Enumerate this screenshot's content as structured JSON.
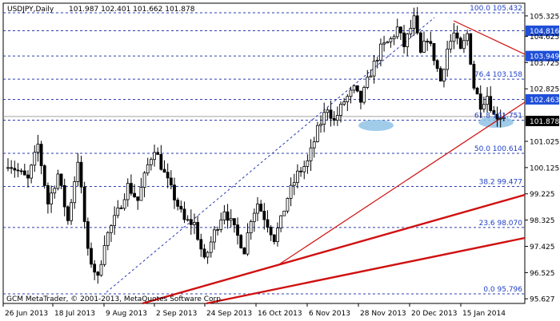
{
  "chart_data": {
    "type": "candlestick",
    "title": "USDJPY,Daily",
    "ohlc_header": "101.987 102.401 101.662 101.878",
    "symbol": "USDJPY",
    "timeframe": "Daily",
    "last_open": 101.987,
    "last_high": 102.401,
    "last_low": 101.662,
    "last_close": 101.878,
    "current_price_label": "101.878",
    "ylim": [
      95.627,
      105.432
    ],
    "y_ticks": [
      {
        "label": "105.325",
        "value": 105.325
      },
      {
        "label": "104.625",
        "value": 104.625
      },
      {
        "label": "103.725",
        "value": 103.725
      },
      {
        "label": "102.825",
        "value": 102.825
      },
      {
        "label": "101.025",
        "value": 101.025
      },
      {
        "label": "100.125",
        "value": 100.125
      },
      {
        "label": "99.225",
        "value": 99.225
      },
      {
        "label": "98.325",
        "value": 98.325
      },
      {
        "label": "97.425",
        "value": 97.425
      },
      {
        "label": "96.525",
        "value": 96.525
      },
      {
        "label": "95.627",
        "value": 95.627
      }
    ],
    "highlighted_levels": [
      {
        "label": "104.816",
        "value": 104.816
      },
      {
        "label": "103.949",
        "value": 103.949
      },
      {
        "label": "102.463",
        "value": 102.463
      }
    ],
    "x_ticks": [
      "26 Jun 2013",
      "18 Jul 2013",
      "9 Aug 2013",
      "2 Sep 2013",
      "24 Sep 2013",
      "16 Oct 2013",
      "6 Nov 2013",
      "28 Nov 2013",
      "20 Dec 2013",
      "15 Jan 2014"
    ],
    "fibonacci": [
      {
        "label": "100.0 105.432",
        "value": 105.432
      },
      {
        "label": "76.4 103.158",
        "value": 103.158
      },
      {
        "label": "61.8 101.751",
        "value": 101.751
      },
      {
        "label": "50.0 100.614",
        "value": 100.614
      },
      {
        "label": "38.2 99.477",
        "value": 99.477
      },
      {
        "label": "23.6 98.070",
        "value": 98.07
      },
      {
        "label": "0.0 95.796",
        "value": 95.796
      }
    ],
    "watermark": "GCM MetaTrader, © 2001-2013, MetaQuotes Software Corp.",
    "colors": {
      "background": "#ffffff",
      "candles": "#000000",
      "fib_lines": "#2a3cb0",
      "trend_lines": "#d01010",
      "highlight_box": "#1f4fd8",
      "current_price_box": "#000000",
      "ellipse": "#8fc3e6"
    },
    "close_path": [
      {
        "i": 0,
        "c": 100.3
      },
      {
        "i": 6,
        "c": 99.7
      },
      {
        "i": 9,
        "c": 100.9
      },
      {
        "i": 12,
        "c": 98.9
      },
      {
        "i": 15,
        "c": 99.9
      },
      {
        "i": 18,
        "c": 98.3
      },
      {
        "i": 21,
        "c": 100.4
      },
      {
        "i": 24,
        "c": 97.2
      },
      {
        "i": 27,
        "c": 96.3
      },
      {
        "i": 29,
        "c": 97.6
      },
      {
        "i": 33,
        "c": 98.6
      },
      {
        "i": 36,
        "c": 99.5
      },
      {
        "i": 39,
        "c": 99.0
      },
      {
        "i": 42,
        "c": 100.2
      },
      {
        "i": 44,
        "c": 100.8
      },
      {
        "i": 47,
        "c": 99.9
      },
      {
        "i": 50,
        "c": 99.1
      },
      {
        "i": 53,
        "c": 98.3
      },
      {
        "i": 56,
        "c": 98.2
      },
      {
        "i": 59,
        "c": 96.9
      },
      {
        "i": 62,
        "c": 97.9
      },
      {
        "i": 65,
        "c": 98.7
      },
      {
        "i": 68,
        "c": 98.0
      },
      {
        "i": 71,
        "c": 97.3
      },
      {
        "i": 73,
        "c": 98.4
      },
      {
        "i": 75,
        "c": 98.9
      },
      {
        "i": 78,
        "c": 98.2
      },
      {
        "i": 80,
        "c": 97.7
      },
      {
        "i": 82,
        "c": 98.3
      },
      {
        "i": 84,
        "c": 99.1
      },
      {
        "i": 87,
        "c": 99.9
      },
      {
        "i": 90,
        "c": 100.3
      },
      {
        "i": 93,
        "c": 101.4
      },
      {
        "i": 96,
        "c": 102.2
      },
      {
        "i": 98,
        "c": 101.7
      },
      {
        "i": 101,
        "c": 102.4
      },
      {
        "i": 104,
        "c": 102.8
      },
      {
        "i": 106,
        "c": 102.4
      },
      {
        "i": 109,
        "c": 103.4
      },
      {
        "i": 112,
        "c": 104.2
      },
      {
        "i": 115,
        "c": 104.5
      },
      {
        "i": 117,
        "c": 104.9
      },
      {
        "i": 119,
        "c": 104.3
      },
      {
        "i": 122,
        "c": 105.2
      },
      {
        "i": 124,
        "c": 104.0
      },
      {
        "i": 126,
        "c": 104.6
      },
      {
        "i": 128,
        "c": 103.9
      },
      {
        "i": 130,
        "c": 103.1
      },
      {
        "i": 132,
        "c": 104.2
      },
      {
        "i": 134,
        "c": 104.7
      },
      {
        "i": 136,
        "c": 104.1
      },
      {
        "i": 138,
        "c": 104.7
      },
      {
        "i": 140,
        "c": 102.9
      },
      {
        "i": 142,
        "c": 102.3
      },
      {
        "i": 144,
        "c": 102.6
      },
      {
        "i": 146,
        "c": 101.9
      }
    ]
  }
}
